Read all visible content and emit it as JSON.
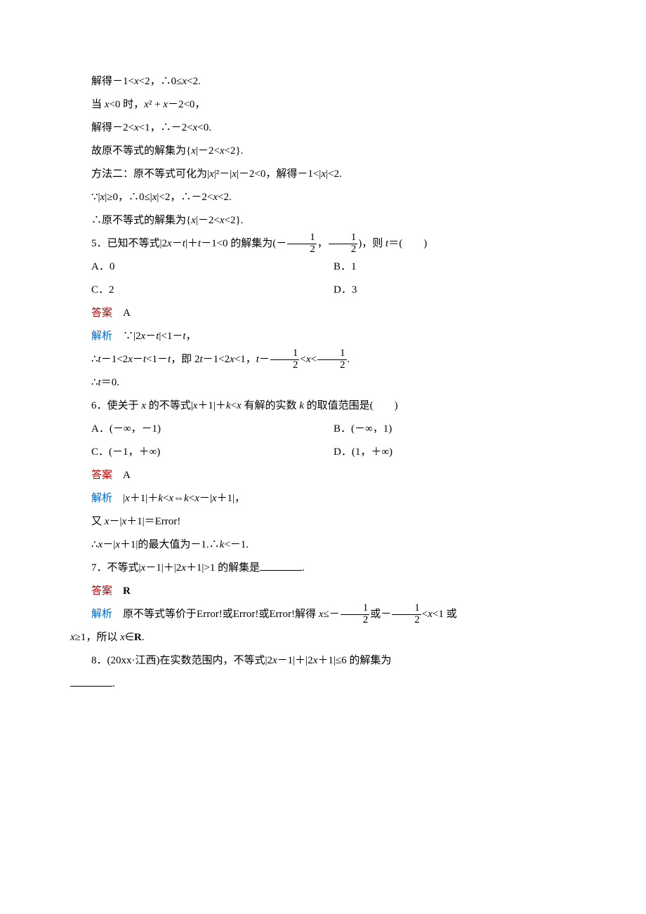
{
  "lines": {
    "l1_a": "解得－1<",
    "l1_b": "<2，∴0≤",
    "l1_c": "<2.",
    "l2_a": "当 ",
    "l2_b": "<0 时，",
    "l2_c": "² + ",
    "l2_d": "－2<0，",
    "l3_a": "解得－2<",
    "l3_b": "<1，∴－2<",
    "l3_c": "<0.",
    "l4_a": "故原不等式的解集为{",
    "l4_b": "|－2<",
    "l4_c": "<2}.",
    "l5_a": "方法二：原不等式可化为|",
    "l5_b": "|²－|",
    "l5_c": "|－2<0，解得－1<|",
    "l5_d": "|<2.",
    "l6_a": "∵|",
    "l6_b": "|≥0，∴0≤|",
    "l6_c": "|<2，∴－2<",
    "l6_d": "<2.",
    "l7_a": "∴原不等式的解集为{",
    "l7_b": "|－2<",
    "l7_c": "<2}.",
    "q5_a": "5．已知不等式|2",
    "q5_b": "－",
    "q5_c": "|＋",
    "q5_d": "－1<0 的解集为(－",
    "q5_e": "，",
    "q5_f": ")，则 ",
    "q5_g": "＝(　　)",
    "q5_optA": "A．0",
    "q5_optB": "B．1",
    "q5_optC": "C．2",
    "q5_optD": "D．3",
    "ans_label": "答案",
    "q5_ans": "A",
    "expl_label": "解析",
    "q5_e1_a": "∵|2",
    "q5_e1_b": "－",
    "q5_e1_c": "|<1－",
    "q5_e1_d": "，",
    "q5_e2_a": "∴",
    "q5_e2_b": "－1<2",
    "q5_e2_c": "－",
    "q5_e2_d": "<1－",
    "q5_e2_e": "，即 2",
    "q5_e2_f": "－1<2",
    "q5_e2_g": "<1，",
    "q5_e2_h": "－",
    "q5_e2_i": "<",
    "q5_e2_j": "<",
    "q5_e2_k": ".",
    "q5_e3_a": "∴",
    "q5_e3_b": "＝0.",
    "q6_a": "6．使关于 ",
    "q6_b": " 的不等式|",
    "q6_c": "＋1|＋",
    "q6_d": "<",
    "q6_e": " 有解的实数 ",
    "q6_f": " 的取值范围是(　　)",
    "q6_optA": "A．(－∞，－1)",
    "q6_optB": "B．(－∞，1)",
    "q6_optC": "C．(－1，＋∞)",
    "q6_optD": "D．(1，＋∞)",
    "q6_ans": "A",
    "q6_e1_a": "|",
    "q6_e1_b": "＋1|＋",
    "q6_e1_c": "<",
    "q6_e1_d": "⇔",
    "q6_e1_e": "<",
    "q6_e1_f": "－|",
    "q6_e1_g": "＋1|，",
    "q6_e2_a": "又 ",
    "q6_e2_b": "－|",
    "q6_e2_c": "＋1|＝",
    "q6_e2_err": "Error!",
    "q6_e3_a": "∴",
    "q6_e3_b": "－|",
    "q6_e3_c": "＋1|的最大值为－1.∴",
    "q6_e3_d": "<－1.",
    "q7_a": "7．不等式|",
    "q7_b": "－1|＋|2",
    "q7_c": "＋1|>1 的解集是",
    "q7_d": ".",
    "q7_ans": "R",
    "q7_e1_a": "原不等式等价于",
    "q7_e1_err": "Error!",
    "q7_e1_b": "或",
    "q7_e1_c": "解得 ",
    "q7_e1_d": "≤－",
    "q7_e1_e": "或－",
    "q7_e1_f": "<",
    "q7_e1_g": "<1 或",
    "q7_e2_a": "≥1，所以 ",
    "q7_e2_b": "∈",
    "q7_e2_c": ".",
    "q8_a": "8．(20xx·江西)在实数范围内，不等式|2",
    "q8_b": "－1|＋|2",
    "q8_c": "＋1|≤6 的解集为",
    "q8_d": "."
  },
  "frac": {
    "num1": "1",
    "den2": "2"
  },
  "vars": {
    "x": "x",
    "t": "t",
    "k": "k",
    "R": "R"
  }
}
